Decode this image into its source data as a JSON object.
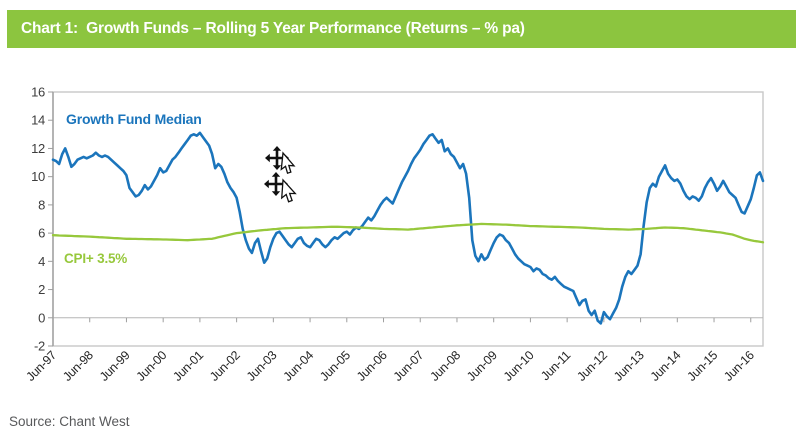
{
  "header": {
    "title": "Chart 1:  Growth Funds – Rolling 5 Year Performance (Returns – % pa)",
    "bg_color": "#8CC53F",
    "text_color": "#FFFFFF"
  },
  "source": {
    "label": "Source: Chant West"
  },
  "icons": {
    "cursor_top": "move-cursor-with-arrow-pointer",
    "cursor_bottom": "move-cursor-with-arrow-pointer"
  },
  "chart_data": {
    "type": "line",
    "title": "Growth Funds – Rolling 5 Year Performance (Returns – % pa)",
    "xlabel": "",
    "ylabel": "",
    "ylim": [
      -2,
      16
    ],
    "y_ticks": [
      -2,
      0,
      2,
      4,
      6,
      8,
      10,
      12,
      14,
      16
    ],
    "grid": "zero-line-only",
    "legend_position": "inline-labels",
    "x_tick_labels": [
      "Jun-97",
      "Jun-98",
      "Jun-99",
      "Jun-00",
      "Jun-01",
      "Jun-02",
      "Jun-03",
      "Jun-04",
      "Jun-05",
      "Jun-06",
      "Jun-07",
      "Jun-08",
      "Jun-09",
      "Jun-10",
      "Jun-11",
      "Jun-12",
      "Jun-13",
      "Jun-14",
      "Jun-15",
      "Jun-16"
    ],
    "x_start": "Jun-1997",
    "x_interval": "monthly",
    "series": [
      {
        "name": "Growth Fund Median",
        "color": "#1B75BC",
        "values": [
          11.2,
          11.1,
          10.9,
          11.6,
          12.0,
          11.4,
          10.7,
          10.9,
          11.2,
          11.3,
          11.4,
          11.3,
          11.4,
          11.5,
          11.7,
          11.5,
          11.4,
          11.5,
          11.4,
          11.2,
          11.0,
          10.8,
          10.6,
          10.4,
          10.1,
          9.2,
          8.9,
          8.6,
          8.7,
          9.0,
          9.4,
          9.1,
          9.3,
          9.7,
          10.1,
          10.6,
          10.3,
          10.4,
          10.8,
          11.2,
          11.4,
          11.7,
          12.0,
          12.3,
          12.6,
          12.9,
          13.0,
          12.9,
          13.1,
          12.8,
          12.5,
          12.2,
          11.6,
          10.6,
          10.9,
          10.7,
          10.2,
          9.6,
          9.2,
          8.9,
          8.5,
          7.5,
          6.3,
          5.5,
          4.9,
          4.6,
          5.3,
          5.6,
          4.7,
          3.9,
          4.2,
          5.0,
          5.6,
          6.0,
          6.1,
          5.8,
          5.5,
          5.2,
          5.0,
          5.3,
          5.6,
          5.7,
          5.3,
          5.1,
          5.0,
          5.3,
          5.6,
          5.5,
          5.2,
          5.0,
          5.2,
          5.5,
          5.7,
          5.6,
          5.8,
          6.0,
          6.1,
          5.9,
          6.2,
          6.4,
          6.3,
          6.5,
          6.8,
          7.1,
          6.9,
          7.2,
          7.6,
          8.0,
          8.3,
          8.5,
          8.3,
          8.1,
          8.6,
          9.1,
          9.6,
          10.0,
          10.4,
          10.9,
          11.3,
          11.6,
          11.9,
          12.3,
          12.6,
          12.9,
          13.0,
          12.7,
          12.4,
          12.6,
          11.8,
          12.0,
          11.6,
          11.4,
          11.0,
          10.6,
          10.9,
          10.2,
          8.5,
          5.5,
          4.4,
          4.0,
          4.5,
          4.1,
          4.3,
          4.8,
          5.3,
          5.7,
          5.9,
          5.8,
          5.5,
          5.3,
          4.9,
          4.5,
          4.2,
          4.0,
          3.8,
          3.7,
          3.6,
          3.3,
          3.5,
          3.4,
          3.1,
          3.0,
          2.8,
          2.7,
          2.9,
          2.6,
          2.4,
          2.2,
          2.1,
          2.0,
          1.9,
          1.4,
          0.9,
          1.2,
          1.3,
          0.5,
          0.2,
          0.5,
          -0.2,
          -0.4,
          0.4,
          0.1,
          -0.1,
          0.3,
          0.7,
          1.3,
          2.2,
          2.9,
          3.3,
          3.1,
          3.4,
          3.7,
          4.5,
          6.5,
          8.2,
          9.2,
          9.5,
          9.3,
          10.0,
          10.4,
          10.8,
          10.2,
          9.9,
          9.7,
          9.8,
          9.5,
          9.0,
          8.6,
          8.4,
          8.6,
          8.5,
          8.3,
          8.6,
          9.2,
          9.6,
          9.9,
          9.5,
          9.0,
          9.3,
          9.7,
          9.3,
          8.9,
          8.7,
          8.5,
          8.0,
          7.5,
          7.4,
          7.9,
          8.4,
          9.2,
          10.1,
          10.3,
          9.7
        ]
      },
      {
        "name": "CPI+ 3.5%",
        "color": "#97C83C",
        "breakpoints": [
          [
            0,
            5.85
          ],
          [
            12,
            5.75
          ],
          [
            24,
            5.6
          ],
          [
            36,
            5.55
          ],
          [
            44,
            5.5
          ],
          [
            52,
            5.6
          ],
          [
            60,
            6.0
          ],
          [
            68,
            6.2
          ],
          [
            76,
            6.35
          ],
          [
            84,
            6.4
          ],
          [
            92,
            6.45
          ],
          [
            100,
            6.4
          ],
          [
            108,
            6.3
          ],
          [
            116,
            6.25
          ],
          [
            124,
            6.4
          ],
          [
            132,
            6.55
          ],
          [
            140,
            6.65
          ],
          [
            148,
            6.6
          ],
          [
            156,
            6.5
          ],
          [
            164,
            6.45
          ],
          [
            172,
            6.4
          ],
          [
            180,
            6.3
          ],
          [
            188,
            6.25
          ],
          [
            194,
            6.3
          ],
          [
            200,
            6.4
          ],
          [
            206,
            6.35
          ],
          [
            212,
            6.2
          ],
          [
            218,
            6.05
          ],
          [
            222,
            5.9
          ],
          [
            226,
            5.6
          ],
          [
            229,
            5.45
          ],
          [
            232,
            5.35
          ]
        ]
      }
    ]
  }
}
